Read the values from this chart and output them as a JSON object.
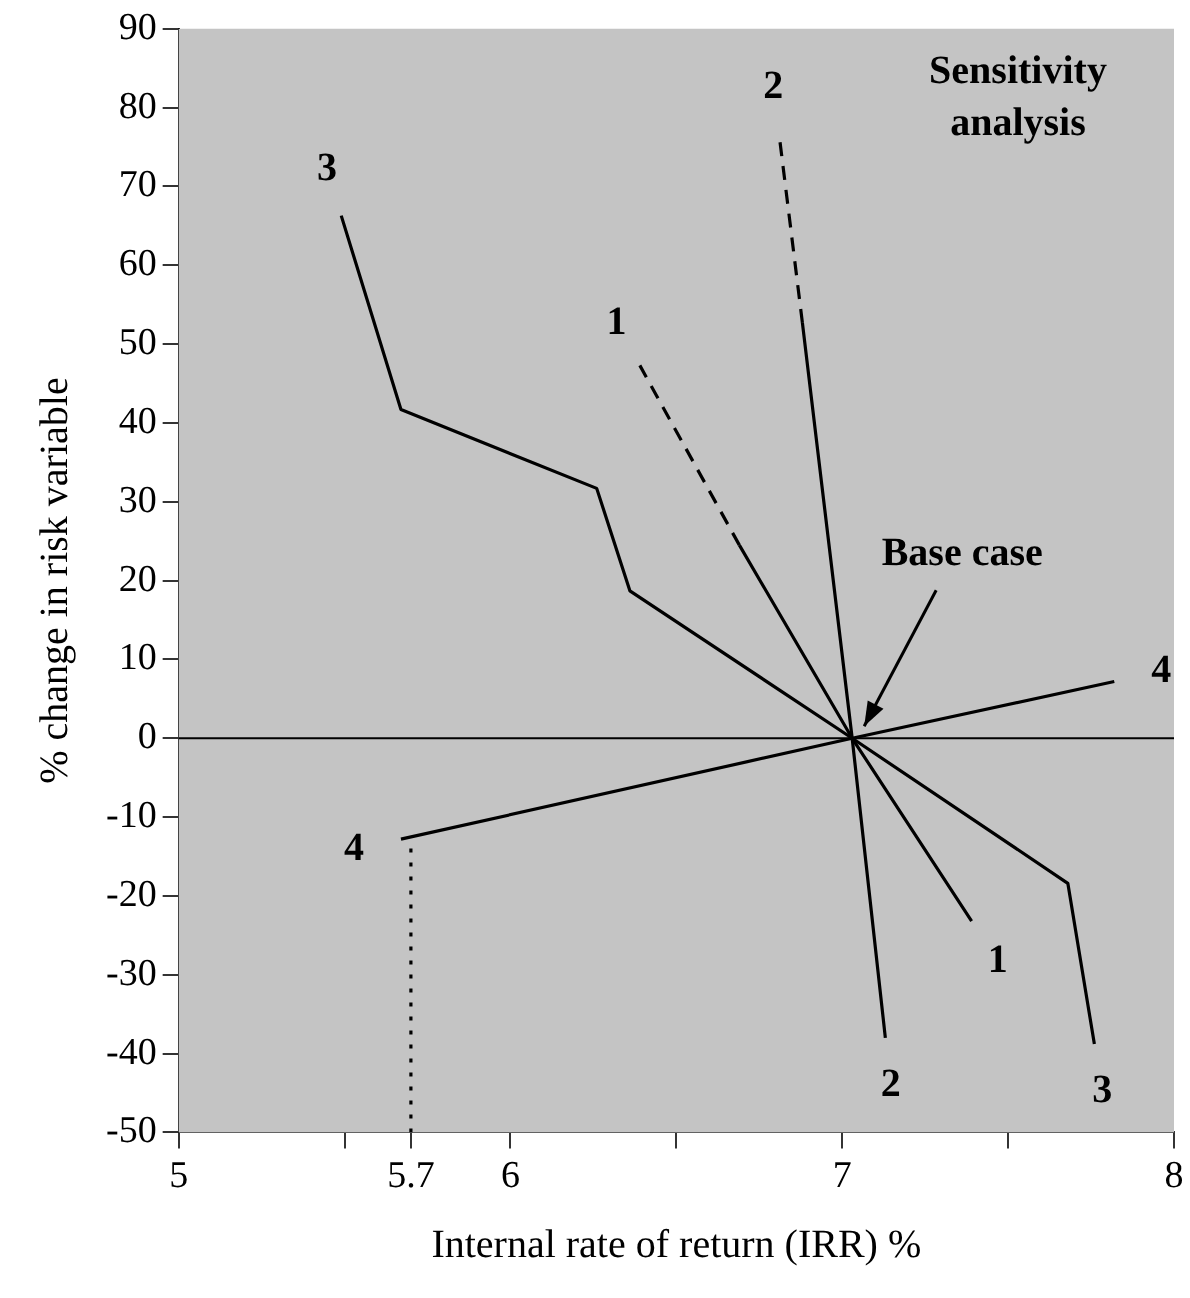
{
  "chart_data": {
    "type": "line",
    "xlabel": "Internal rate of return (IRR) %",
    "ylabel": "% change in risk variable",
    "xlim": [
      5,
      8
    ],
    "xticks": [
      5,
      {
        "value": 5.5,
        "label": null
      },
      {
        "value": 5.7,
        "label": "5.7"
      },
      6,
      {
        "value": 6.5,
        "label": null
      },
      7,
      {
        "value": 7.5,
        "label": null
      },
      8
    ],
    "ylim": [
      -50,
      90
    ],
    "yticks": [
      -50,
      -40,
      -30,
      -20,
      -10,
      0,
      10,
      20,
      30,
      40,
      50,
      60,
      70,
      80,
      90
    ],
    "grid": false,
    "legend": false,
    "marker": "none",
    "series": [
      {
        "color": "#000000",
        "line_style": "solid",
        "x": [
          7.39,
          7.03,
          6.69
        ],
        "values": [
          -23.2,
          0,
          24.5
        ]
      },
      {
        "color": "#000000",
        "line_style": "dashed",
        "x": [
          6.69,
          6.39
        ],
        "values": [
          24.5,
          47.3
        ]
      },
      {
        "color": "#000000",
        "line_style": "solid",
        "x": [
          7.13,
          7.03,
          6.88
        ],
        "values": [
          -38,
          0,
          52.7
        ]
      },
      {
        "color": "#000000",
        "line_style": "dashed",
        "x": [
          6.88,
          6.81
        ],
        "values": [
          52.7,
          76.5
        ]
      },
      {
        "color": "#000000",
        "line_style": "solid",
        "x": [
          7.76,
          7.68,
          7.03,
          6.36,
          6.26,
          5.67,
          5.49
        ],
        "values": [
          -38.8,
          -18.4,
          0,
          18.7,
          31.7,
          41.7,
          66.3
        ]
      },
      {
        "color": "#000000",
        "line_style": "solid",
        "x": [
          5.67,
          7.03,
          7.82
        ],
        "values": [
          -12.8,
          0,
          7.2
        ]
      },
      {
        "color": "#000000",
        "line_style": "dotted",
        "x": [
          5.7,
          5.7
        ],
        "values": [
          -50,
          -12.8
        ]
      }
    ],
    "ref_lines": [
      {
        "axis": "y",
        "value": 0,
        "color": "#000000"
      }
    ],
    "annotations": [
      "Sensitivity analysis",
      {
        "text": "Base case",
        "x": 7.03,
        "y": 0
      },
      {
        "text": "1",
        "x": 6.39,
        "y": 47.3
      },
      {
        "text": "1",
        "x": 7.39,
        "y": -23.2
      },
      {
        "text": "2",
        "x": 6.81,
        "y": 76.5
      },
      {
        "text": "2",
        "x": 7.13,
        "y": -38
      },
      {
        "text": "3",
        "x": 5.49,
        "y": 66.3
      },
      {
        "text": "3",
        "x": 7.76,
        "y": -38.8
      },
      {
        "text": "4",
        "x": 5.67,
        "y": -12.8
      },
      {
        "text": "4",
        "x": 7.82,
        "y": 7.2
      }
    ]
  }
}
